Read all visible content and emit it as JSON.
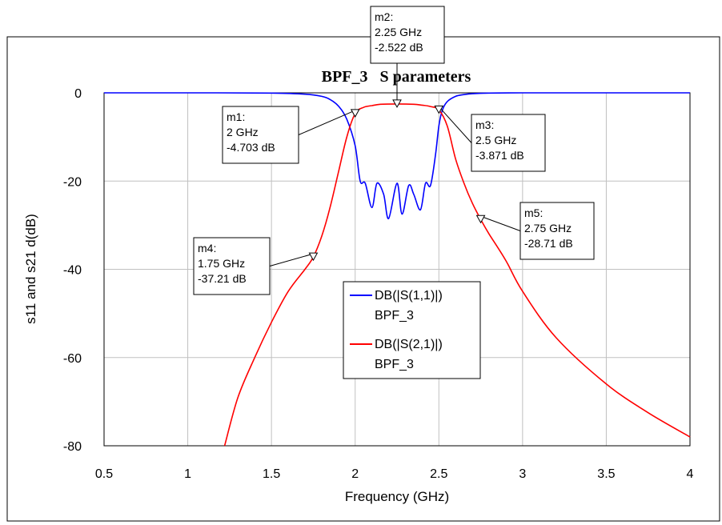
{
  "chart_data": {
    "type": "line",
    "title": "BPF_3   S parameters",
    "xlabel": "Frequency (GHz)",
    "ylabel": "s11 and s21 d(dB)",
    "xlim": [
      0.5,
      4
    ],
    "ylim": [
      -80,
      0
    ],
    "xticks": [
      "0.5",
      "1",
      "1.5",
      "2",
      "2.5",
      "3",
      "3.5",
      "4"
    ],
    "yticks": [
      "0",
      "-20",
      "-40",
      "-60",
      "-80"
    ],
    "grid": true,
    "legend_position": "center",
    "series": [
      {
        "name": "DB(|S(1,1)|)",
        "legend_sub": "BPF_3",
        "color": "#0000ff",
        "x": [
          0.5,
          1.0,
          1.5,
          1.7,
          1.8,
          1.85,
          1.9,
          1.95,
          2.0,
          2.03,
          2.06,
          2.1,
          2.13,
          2.17,
          2.2,
          2.25,
          2.28,
          2.32,
          2.35,
          2.39,
          2.42,
          2.45,
          2.48,
          2.5,
          2.52,
          2.55,
          2.6,
          2.65,
          2.7,
          2.8,
          3.0,
          3.5,
          4.0
        ],
        "y": [
          0,
          0,
          -0.05,
          -0.3,
          -0.8,
          -1.5,
          -3.0,
          -6.0,
          -12.0,
          -20.0,
          -20.5,
          -26.0,
          -20.5,
          -23.0,
          -28.5,
          -20.5,
          -27.5,
          -21.0,
          -23.0,
          -26.5,
          -20.5,
          -21.0,
          -14.0,
          -7.5,
          -4.0,
          -2.0,
          -0.8,
          -0.4,
          -0.2,
          -0.05,
          0,
          0,
          0
        ]
      },
      {
        "name": "DB(|S(2,1)|)",
        "legend_sub": "BPF_3",
        "color": "#ff0000",
        "x": [
          1.22,
          1.3,
          1.4,
          1.5,
          1.6,
          1.7,
          1.75,
          1.8,
          1.85,
          1.9,
          1.95,
          2.0,
          2.05,
          2.1,
          2.15,
          2.25,
          2.35,
          2.4,
          2.45,
          2.5,
          2.55,
          2.6,
          2.65,
          2.7,
          2.75,
          2.8,
          2.9,
          3.0,
          3.2,
          3.5,
          3.75,
          4.0
        ],
        "y": [
          -80,
          -69,
          -60,
          -52,
          -45,
          -40,
          -37.21,
          -32.5,
          -26,
          -18,
          -10,
          -4.7,
          -3.3,
          -2.9,
          -2.6,
          -2.52,
          -2.6,
          -2.8,
          -3.1,
          -3.87,
          -7.5,
          -15,
          -20.5,
          -25,
          -28.71,
          -32,
          -38,
          -45,
          -55.5,
          -66,
          -72.5,
          -78
        ]
      }
    ],
    "markers": [
      {
        "id": "m1",
        "lines": [
          "m1:",
          "2 GHz",
          "-4.703 dB"
        ],
        "x": 2.0,
        "y": -4.703
      },
      {
        "id": "m2",
        "lines": [
          "m2:",
          "2.25 GHz",
          "-2.522 dB"
        ],
        "x": 2.25,
        "y": -2.522
      },
      {
        "id": "m3",
        "lines": [
          "m3:",
          "2.5 GHz",
          "-3.871 dB"
        ],
        "x": 2.5,
        "y": -3.871
      },
      {
        "id": "m4",
        "lines": [
          "m4:",
          "1.75 GHz",
          "-37.21 dB"
        ],
        "x": 1.75,
        "y": -37.21
      },
      {
        "id": "m5",
        "lines": [
          "m5:",
          "2.75 GHz",
          "-28.71 dB"
        ],
        "x": 2.75,
        "y": -28.71
      }
    ]
  }
}
